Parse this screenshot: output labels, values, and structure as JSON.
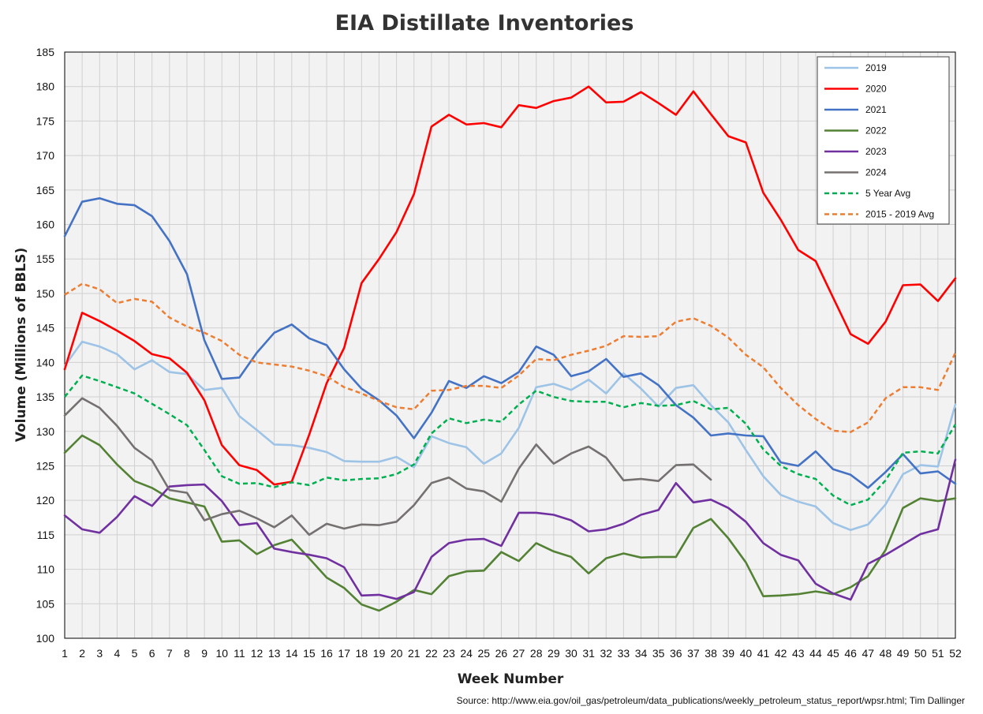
{
  "chart_data": {
    "type": "line",
    "title": "EIA Distillate Inventories",
    "xlabel": "Week Number",
    "ylabel": "Volume (Millions of BBLS)",
    "source": "Source: http://www.eia.gov/oil_gas/petroleum/data_publications/weekly_petroleum_status_report/wpsr.html; Tim Dallinger",
    "ylim": [
      100,
      185
    ],
    "ytick_step": 5,
    "x": [
      1,
      2,
      3,
      4,
      5,
      6,
      7,
      8,
      9,
      10,
      11,
      12,
      13,
      14,
      15,
      16,
      17,
      18,
      19,
      20,
      21,
      22,
      23,
      24,
      25,
      26,
      27,
      28,
      29,
      30,
      31,
      32,
      33,
      34,
      35,
      36,
      37,
      38,
      39,
      40,
      41,
      42,
      43,
      44,
      45,
      46,
      47,
      48,
      49,
      50,
      51,
      52
    ],
    "grid": true,
    "legend_position": "top-right",
    "series": [
      {
        "name": "2019",
        "color": "#9dc3e6",
        "dashed": false,
        "values": [
          139.5,
          143.0,
          142.3,
          141.2,
          139.0,
          140.3,
          138.6,
          138.3,
          136.0,
          136.3,
          132.2,
          130.2,
          128.1,
          128.0,
          127.6,
          127.0,
          125.7,
          125.6,
          125.6,
          126.3,
          124.8,
          129.3,
          128.3,
          127.7,
          125.3,
          126.8,
          130.5,
          136.4,
          136.9,
          136.0,
          137.5,
          135.5,
          138.4,
          136.2,
          133.6,
          136.3,
          136.7,
          133.8,
          131.3,
          127.3,
          123.5,
          120.8,
          119.8,
          119.1,
          116.7,
          115.7,
          116.5,
          119.4,
          123.8,
          125.1,
          124.9,
          133.9
        ]
      },
      {
        "name": "2020",
        "color": "#ff0000",
        "dashed": false,
        "values": [
          139.0,
          147.2,
          146.0,
          144.6,
          143.1,
          141.2,
          140.6,
          138.5,
          134.5,
          128.0,
          125.1,
          124.4,
          122.3,
          122.7,
          129.5,
          137.0,
          142.1,
          151.5,
          155.0,
          158.9,
          164.4,
          174.2,
          175.9,
          174.5,
          174.7,
          174.1,
          177.3,
          176.9,
          177.9,
          178.4,
          180.0,
          177.7,
          177.8,
          179.2,
          177.6,
          175.9,
          179.3,
          176.0,
          172.8,
          171.9,
          164.6,
          160.7,
          156.3,
          154.7,
          149.4,
          144.1,
          142.7,
          145.9,
          151.2,
          151.3,
          148.9,
          152.2
        ]
      },
      {
        "name": "2021",
        "color": "#4472c4",
        "dashed": false,
        "values": [
          158.3,
          163.3,
          163.8,
          163.0,
          162.8,
          161.2,
          157.6,
          152.8,
          143.2,
          137.6,
          137.8,
          141.4,
          144.3,
          145.5,
          143.5,
          142.5,
          139.0,
          136.2,
          134.5,
          132.3,
          129.0,
          132.7,
          137.3,
          136.3,
          138.0,
          137.0,
          138.6,
          142.3,
          141.1,
          138.0,
          138.7,
          140.5,
          137.9,
          138.4,
          136.7,
          133.8,
          132.0,
          129.4,
          129.7,
          129.4,
          129.3,
          125.5,
          125.0,
          127.1,
          124.5,
          123.7,
          121.8,
          124.1,
          126.7,
          123.9,
          124.2,
          122.4
        ]
      },
      {
        "name": "2022",
        "color": "#548235",
        "dashed": false,
        "values": [
          126.9,
          129.4,
          128.0,
          125.2,
          122.8,
          121.8,
          120.3,
          119.7,
          119.1,
          114.0,
          114.2,
          112.2,
          113.5,
          114.3,
          111.6,
          108.8,
          107.3,
          104.9,
          104.0,
          105.3,
          107.0,
          106.4,
          109.0,
          109.7,
          109.8,
          112.5,
          111.2,
          113.8,
          112.6,
          111.8,
          109.4,
          111.6,
          112.3,
          111.7,
          111.8,
          111.8,
          116.0,
          117.3,
          114.5,
          111.0,
          106.1,
          106.2,
          106.4,
          106.8,
          106.4,
          107.4,
          109.0,
          112.8,
          118.9,
          120.3,
          119.9,
          120.3
        ]
      },
      {
        "name": "2023",
        "color": "#7030a0",
        "dashed": false,
        "values": [
          117.8,
          115.8,
          115.3,
          117.6,
          120.6,
          119.2,
          122.0,
          122.2,
          122.3,
          119.9,
          116.4,
          116.7,
          113.0,
          112.5,
          112.1,
          111.6,
          110.3,
          106.2,
          106.3,
          105.7,
          106.7,
          111.8,
          113.8,
          114.3,
          114.4,
          113.4,
          118.2,
          118.2,
          117.9,
          117.1,
          115.5,
          115.8,
          116.6,
          117.9,
          118.6,
          122.5,
          119.7,
          120.1,
          118.9,
          116.9,
          113.8,
          112.1,
          111.3,
          107.9,
          106.5,
          105.6,
          110.8,
          112.1,
          113.6,
          115.1,
          115.8,
          125.9
        ]
      },
      {
        "name": "2024",
        "color": "#767171",
        "dashed": false,
        "values": [
          132.3,
          134.8,
          133.4,
          130.8,
          127.6,
          125.8,
          121.5,
          121.1,
          117.1,
          118.0,
          118.5,
          117.4,
          116.1,
          117.8,
          115.0,
          116.6,
          115.9,
          116.5,
          116.4,
          116.9,
          119.3,
          122.5,
          123.3,
          121.7,
          121.3,
          119.8,
          124.6,
          128.1,
          125.3,
          126.8,
          127.8,
          126.2,
          122.9,
          123.1,
          122.8,
          125.1,
          125.2,
          123.0,
          null,
          null,
          null,
          null,
          null,
          null,
          null,
          null,
          null,
          null,
          null,
          null,
          null,
          null
        ]
      },
      {
        "name": "5 Year Avg",
        "color": "#00b050",
        "dashed": true,
        "values": [
          135.0,
          138.1,
          137.3,
          136.4,
          135.5,
          134.0,
          132.5,
          130.9,
          127.3,
          123.5,
          122.4,
          122.5,
          121.9,
          122.6,
          122.2,
          123.3,
          122.9,
          123.1,
          123.2,
          123.8,
          125.2,
          129.7,
          131.9,
          131.2,
          131.7,
          131.4,
          133.9,
          135.9,
          135.0,
          134.4,
          134.3,
          134.3,
          133.5,
          134.1,
          133.7,
          133.8,
          134.4,
          133.2,
          133.4,
          131.1,
          127.4,
          125.0,
          123.8,
          123.1,
          120.7,
          119.3,
          120.1,
          122.9,
          126.9,
          127.1,
          126.8,
          131.0
        ]
      },
      {
        "name": "2015 - 2019 Avg",
        "color": "#ed7d31",
        "dashed": true,
        "values": [
          149.8,
          151.4,
          150.6,
          148.6,
          149.2,
          148.8,
          146.5,
          145.2,
          144.3,
          143.1,
          141.1,
          140.0,
          139.7,
          139.4,
          138.8,
          138.0,
          136.4,
          135.5,
          134.4,
          133.5,
          133.2,
          135.9,
          136.0,
          136.6,
          136.6,
          136.3,
          138.1,
          140.5,
          140.3,
          141.1,
          141.7,
          142.4,
          143.8,
          143.7,
          143.8,
          145.9,
          146.4,
          145.3,
          143.6,
          141.1,
          139.3,
          136.3,
          133.8,
          131.8,
          130.1,
          129.9,
          131.3,
          134.8,
          136.4,
          136.4,
          136.0,
          141.4
        ]
      }
    ]
  }
}
